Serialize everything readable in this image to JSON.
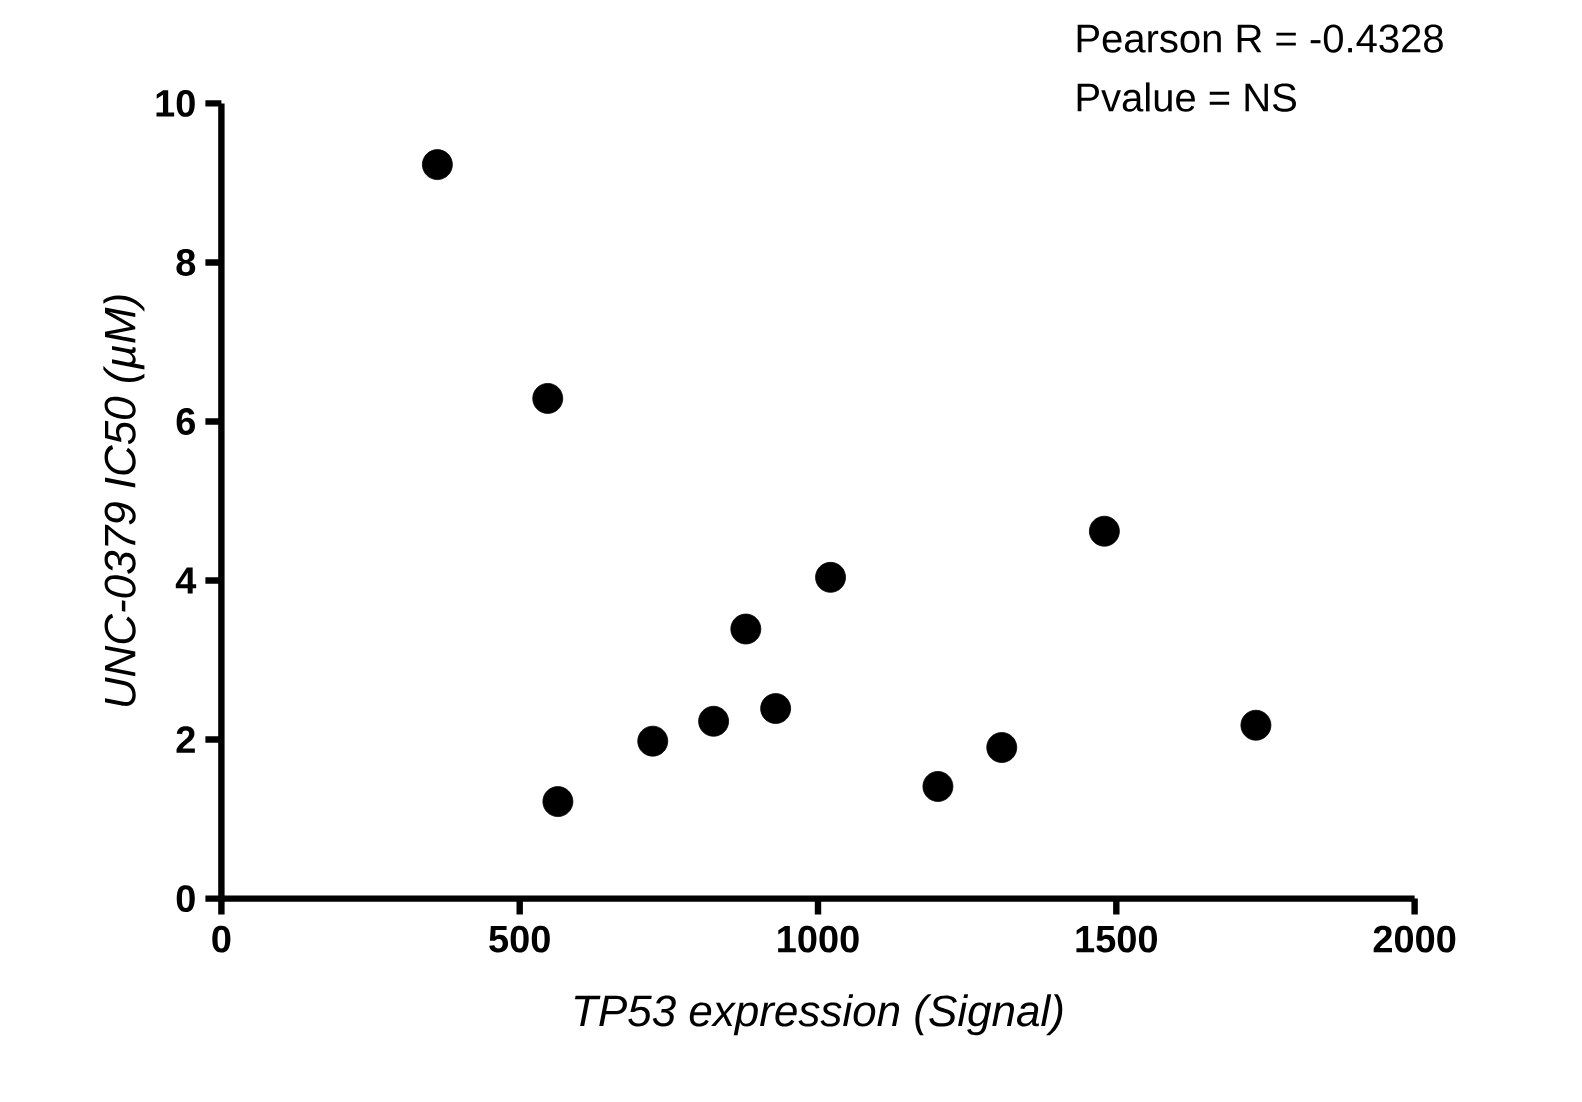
{
  "chart_data": {
    "type": "scatter",
    "xlabel": "TP53 expression (Signal)",
    "ylabel": "UNC-0379 IC50 (µM)",
    "annotations": [
      "Pearson R = -0.4328",
      "Pvalue = NS"
    ],
    "x": [
      362,
      547,
      564,
      723,
      825,
      879,
      929,
      1021,
      1201,
      1308,
      1480,
      1734
    ],
    "values": [
      9.23,
      6.29,
      1.22,
      1.98,
      2.23,
      3.39,
      2.39,
      4.04,
      1.41,
      1.9,
      4.62,
      2.18
    ],
    "color": "#000000",
    "xlim": [
      0,
      2000
    ],
    "ylim": [
      0,
      10
    ],
    "xticks": [
      0,
      500,
      1000,
      1500,
      2000
    ],
    "yticks": [
      0,
      2,
      4,
      6,
      8,
      10
    ]
  }
}
